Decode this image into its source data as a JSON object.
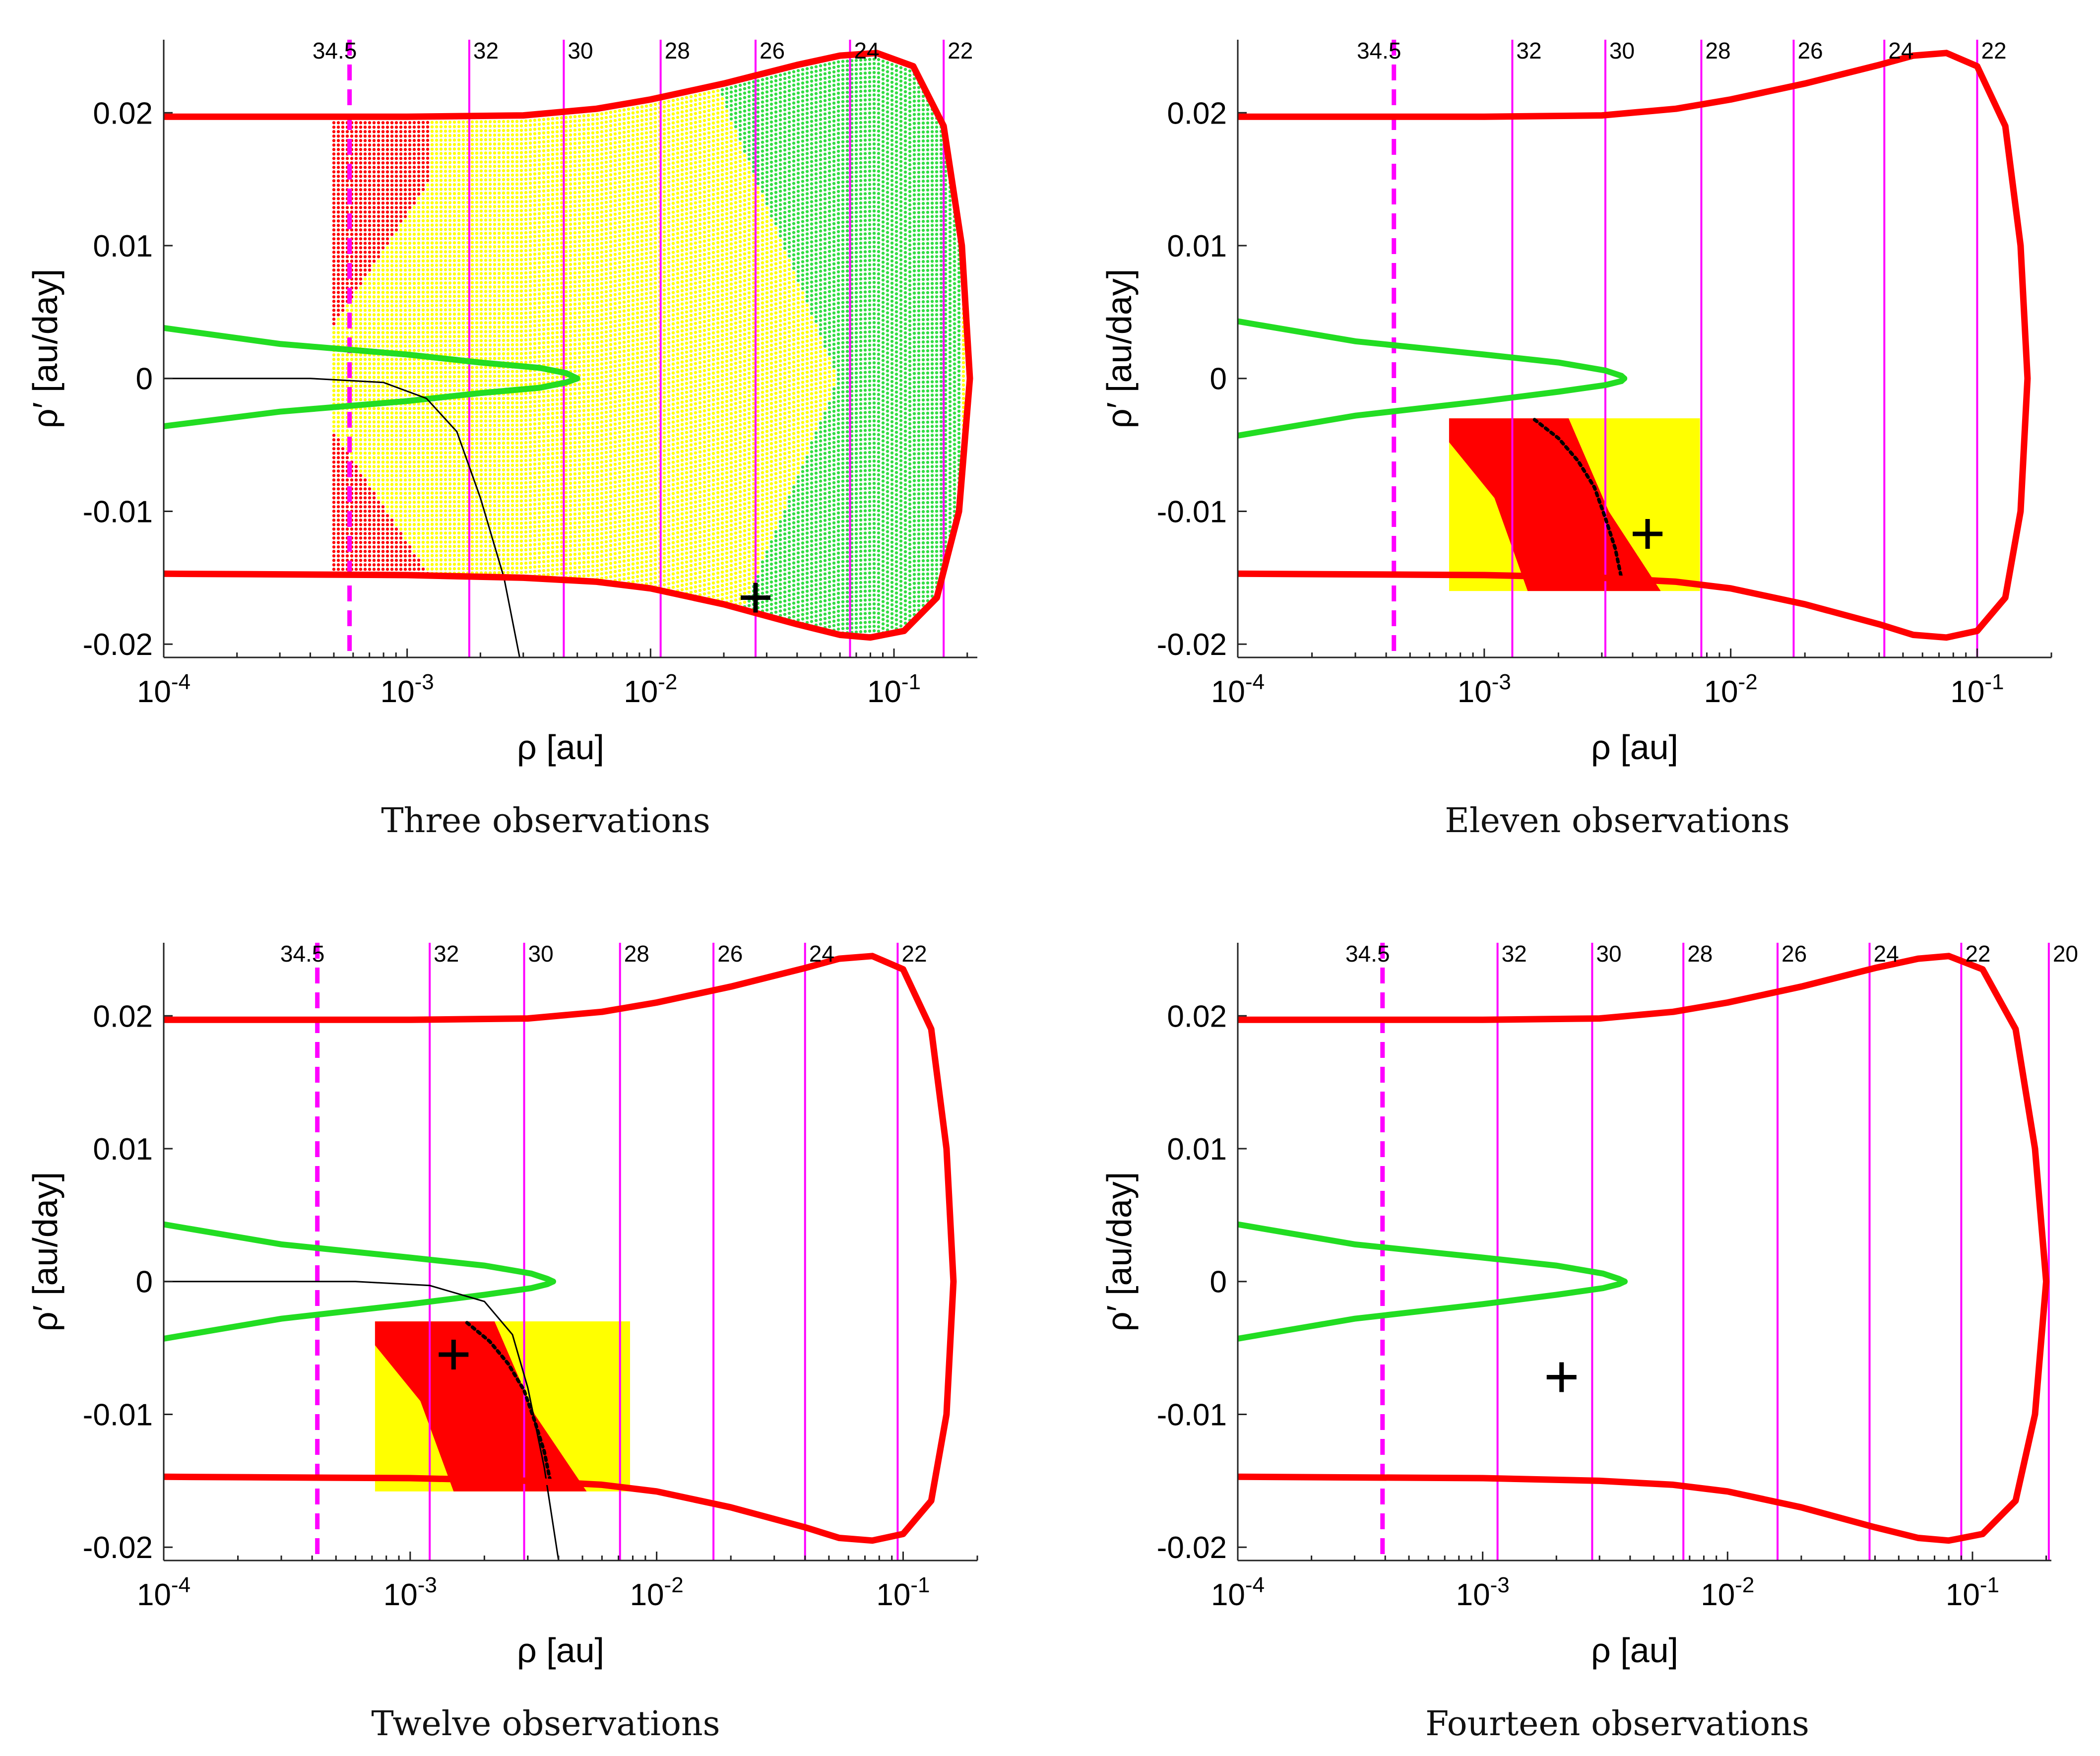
{
  "figure": {
    "x_label": "ρ [au]",
    "y_label": "ρ′ [au/day]",
    "x_ticks": [
      {
        "value": 0.0001,
        "base": "10",
        "exp": "-4"
      },
      {
        "value": 0.001,
        "base": "10",
        "exp": "-3"
      },
      {
        "value": 0.01,
        "base": "10",
        "exp": "-2"
      },
      {
        "value": 0.1,
        "base": "10",
        "exp": "-1"
      }
    ],
    "y_ticks": [
      {
        "value": 0.02,
        "label": "0.02"
      },
      {
        "value": 0.01,
        "label": "0.01"
      },
      {
        "value": 0,
        "label": "0"
      },
      {
        "value": -0.01,
        "label": "-0.01"
      },
      {
        "value": -0.02,
        "label": "-0.02"
      }
    ],
    "colors": {
      "boundary_red": "#ff0000",
      "green_curve": "#22dd22",
      "magenta": "#ff00ff",
      "yellow_region": "#ffff00",
      "red_region": "#ff0000",
      "green_region": "#33dd44",
      "black": "#000000"
    }
  },
  "chart_data": [
    {
      "type": "scatter",
      "title": "Three observations",
      "xlabel": "ρ [au]",
      "ylabel": "ρ′ [au/day]",
      "xscale": "log",
      "xlim": [
        0.0001,
        0.22
      ],
      "ylim": [
        -0.021,
        0.0255
      ],
      "boundary_upper": [
        [
          0.0001,
          0.0197
        ],
        [
          0.001,
          0.0197
        ],
        [
          0.003,
          0.0198
        ],
        [
          0.006,
          0.0203
        ],
        [
          0.01,
          0.021
        ],
        [
          0.02,
          0.0222
        ],
        [
          0.04,
          0.0236
        ],
        [
          0.06,
          0.0243
        ],
        [
          0.085,
          0.0245
        ],
        [
          0.12,
          0.0235
        ],
        [
          0.16,
          0.019
        ],
        [
          0.19,
          0.01
        ],
        [
          0.205,
          0
        ]
      ],
      "boundary_lower": [
        [
          0.0001,
          -0.0147
        ],
        [
          0.001,
          -0.0148
        ],
        [
          0.003,
          -0.015
        ],
        [
          0.006,
          -0.0153
        ],
        [
          0.01,
          -0.0158
        ],
        [
          0.02,
          -0.017
        ],
        [
          0.04,
          -0.0185
        ],
        [
          0.06,
          -0.0193
        ],
        [
          0.08,
          -0.0195
        ],
        [
          0.11,
          -0.019
        ],
        [
          0.15,
          -0.0165
        ],
        [
          0.185,
          -0.01
        ],
        [
          0.205,
          0
        ]
      ],
      "green_curve_upper": [
        [
          0.0001,
          0.0038
        ],
        [
          0.0003,
          0.0026
        ],
        [
          0.001,
          0.0018
        ],
        [
          0.002,
          0.0012
        ],
        [
          0.0035,
          0.0008
        ],
        [
          0.0045,
          0.0004
        ],
        [
          0.005,
          0
        ]
      ],
      "green_curve_lower": [
        [
          0.0001,
          -0.0036
        ],
        [
          0.0003,
          -0.0025
        ],
        [
          0.001,
          -0.0017
        ],
        [
          0.002,
          -0.0011
        ],
        [
          0.0035,
          -0.0007
        ],
        [
          0.0045,
          -0.0003
        ],
        [
          0.005,
          0
        ]
      ],
      "black_curve": [
        [
          0.0001,
          0
        ],
        [
          0.0004,
          0
        ],
        [
          0.0008,
          -0.0003
        ],
        [
          0.0012,
          -0.0015
        ],
        [
          0.0016,
          -0.004
        ],
        [
          0.002,
          -0.009
        ],
        [
          0.0025,
          -0.015
        ],
        [
          0.0029,
          -0.021
        ]
      ],
      "grid_box": {
        "x": [
          0.0005,
          0.2
        ],
        "y": [
          -0.015,
          0.0205
        ]
      },
      "marker": {
        "x": 0.027,
        "y": -0.0165
      },
      "vlines": [
        {
          "label": "34.5",
          "x": 0.00058,
          "dashed": true
        },
        {
          "label": "32",
          "x": 0.0018,
          "dashed": false
        },
        {
          "label": "30",
          "x": 0.0044,
          "dashed": false
        },
        {
          "label": "28",
          "x": 0.011,
          "dashed": false
        },
        {
          "label": "26",
          "x": 0.027,
          "dashed": false
        },
        {
          "label": "24",
          "x": 0.066,
          "dashed": false
        },
        {
          "label": "22",
          "x": 0.16,
          "dashed": false
        }
      ]
    },
    {
      "type": "scatter",
      "title": "Eleven observations",
      "xlabel": "ρ [au]",
      "ylabel": "ρ′ [au/day]",
      "xscale": "log",
      "xlim": [
        0.0001,
        0.2
      ],
      "ylim": [
        -0.021,
        0.0255
      ],
      "boundary_upper": [
        [
          0.0001,
          0.0197
        ],
        [
          0.001,
          0.0197
        ],
        [
          0.003,
          0.0198
        ],
        [
          0.006,
          0.0203
        ],
        [
          0.01,
          0.021
        ],
        [
          0.02,
          0.0222
        ],
        [
          0.04,
          0.0236
        ],
        [
          0.055,
          0.0243
        ],
        [
          0.075,
          0.0245
        ],
        [
          0.1,
          0.0235
        ],
        [
          0.13,
          0.019
        ],
        [
          0.15,
          0.01
        ],
        [
          0.16,
          0
        ]
      ],
      "boundary_lower": [
        [
          0.0001,
          -0.0147
        ],
        [
          0.001,
          -0.0148
        ],
        [
          0.003,
          -0.015
        ],
        [
          0.006,
          -0.0153
        ],
        [
          0.01,
          -0.0158
        ],
        [
          0.02,
          -0.017
        ],
        [
          0.04,
          -0.0185
        ],
        [
          0.055,
          -0.0193
        ],
        [
          0.075,
          -0.0195
        ],
        [
          0.1,
          -0.019
        ],
        [
          0.13,
          -0.0165
        ],
        [
          0.15,
          -0.01
        ],
        [
          0.16,
          0
        ]
      ],
      "green_curve_upper": [
        [
          0.0001,
          0.0043
        ],
        [
          0.0003,
          0.0028
        ],
        [
          0.001,
          0.0018
        ],
        [
          0.002,
          0.0012
        ],
        [
          0.0031,
          0.0006
        ],
        [
          0.0036,
          0.0002
        ],
        [
          0.0037,
          0
        ]
      ],
      "green_curve_lower": [
        [
          0.0001,
          -0.0043
        ],
        [
          0.0003,
          -0.0028
        ],
        [
          0.001,
          -0.0017
        ],
        [
          0.002,
          -0.001
        ],
        [
          0.0031,
          -0.0005
        ],
        [
          0.0036,
          -0.0002
        ],
        [
          0.0037,
          0
        ]
      ],
      "yellow_rect": {
        "x": [
          0.00072,
          0.0075
        ],
        "y": [
          -0.016,
          -0.003
        ]
      },
      "red_band": [
        [
          0.0012,
          -0.003
        ],
        [
          0.0022,
          -0.003
        ],
        [
          0.0032,
          -0.01
        ],
        [
          0.0052,
          -0.016
        ],
        [
          0.0015,
          -0.016
        ],
        [
          0.0011,
          -0.009
        ],
        [
          0.00072,
          -0.0048
        ],
        [
          0.00072,
          -0.003
        ]
      ],
      "dot_curve": [
        [
          0.0016,
          -0.0031
        ],
        [
          0.002,
          -0.0045
        ],
        [
          0.0024,
          -0.0062
        ],
        [
          0.0028,
          -0.0082
        ],
        [
          0.0031,
          -0.0105
        ],
        [
          0.0034,
          -0.0128
        ],
        [
          0.0036,
          -0.015
        ]
      ],
      "marker": {
        "x": 0.0046,
        "y": -0.0117
      },
      "vlines": [
        {
          "label": "34.5",
          "x": 0.00043,
          "dashed": true
        },
        {
          "label": "32",
          "x": 0.0013,
          "dashed": false
        },
        {
          "label": "30",
          "x": 0.0031,
          "dashed": false
        },
        {
          "label": "28",
          "x": 0.0076,
          "dashed": false
        },
        {
          "label": "26",
          "x": 0.018,
          "dashed": false
        },
        {
          "label": "24",
          "x": 0.042,
          "dashed": false
        },
        {
          "label": "22",
          "x": 0.1,
          "dashed": false
        }
      ]
    },
    {
      "type": "scatter",
      "title": "Twelve observations",
      "xlabel": "ρ [au]",
      "ylabel": "ρ′ [au/day]",
      "xscale": "log",
      "xlim": [
        0.0001,
        0.2
      ],
      "ylim": [
        -0.021,
        0.0255
      ],
      "boundary_upper": [
        [
          0.0001,
          0.0197
        ],
        [
          0.001,
          0.0197
        ],
        [
          0.003,
          0.0198
        ],
        [
          0.006,
          0.0203
        ],
        [
          0.01,
          0.021
        ],
        [
          0.02,
          0.0222
        ],
        [
          0.04,
          0.0236
        ],
        [
          0.055,
          0.0243
        ],
        [
          0.075,
          0.0245
        ],
        [
          0.1,
          0.0235
        ],
        [
          0.13,
          0.019
        ],
        [
          0.15,
          0.01
        ],
        [
          0.16,
          0
        ]
      ],
      "boundary_lower": [
        [
          0.0001,
          -0.0147
        ],
        [
          0.001,
          -0.0148
        ],
        [
          0.003,
          -0.015
        ],
        [
          0.006,
          -0.0153
        ],
        [
          0.01,
          -0.0158
        ],
        [
          0.02,
          -0.017
        ],
        [
          0.04,
          -0.0185
        ],
        [
          0.055,
          -0.0193
        ],
        [
          0.075,
          -0.0195
        ],
        [
          0.1,
          -0.019
        ],
        [
          0.13,
          -0.0165
        ],
        [
          0.15,
          -0.01
        ],
        [
          0.16,
          0
        ]
      ],
      "green_curve_upper": [
        [
          0.0001,
          0.0043
        ],
        [
          0.0003,
          0.0028
        ],
        [
          0.001,
          0.0018
        ],
        [
          0.002,
          0.0012
        ],
        [
          0.0031,
          0.0006
        ],
        [
          0.0036,
          0.0002
        ],
        [
          0.0038,
          0
        ]
      ],
      "green_curve_lower": [
        [
          0.0001,
          -0.0043
        ],
        [
          0.0003,
          -0.0028
        ],
        [
          0.001,
          -0.0017
        ],
        [
          0.002,
          -0.001
        ],
        [
          0.0031,
          -0.0005
        ],
        [
          0.0036,
          -0.0002
        ],
        [
          0.0038,
          0
        ]
      ],
      "black_curve": [
        [
          0.0001,
          0
        ],
        [
          0.0006,
          0
        ],
        [
          0.0012,
          -0.0003
        ],
        [
          0.002,
          -0.0015
        ],
        [
          0.0026,
          -0.004
        ],
        [
          0.003,
          -0.008
        ],
        [
          0.0035,
          -0.014
        ],
        [
          0.004,
          -0.021
        ]
      ],
      "yellow_rect": {
        "x": [
          0.00072,
          0.0078
        ],
        "y": [
          -0.0158,
          -0.003
        ]
      },
      "red_band": [
        [
          0.0012,
          -0.003
        ],
        [
          0.0022,
          -0.003
        ],
        [
          0.0032,
          -0.01
        ],
        [
          0.0052,
          -0.0158
        ],
        [
          0.0015,
          -0.0158
        ],
        [
          0.0011,
          -0.009
        ],
        [
          0.00072,
          -0.0048
        ],
        [
          0.00072,
          -0.003
        ]
      ],
      "dot_curve": [
        [
          0.0017,
          -0.0031
        ],
        [
          0.0021,
          -0.0045
        ],
        [
          0.0025,
          -0.0062
        ],
        [
          0.0029,
          -0.0082
        ],
        [
          0.0032,
          -0.0105
        ],
        [
          0.0035,
          -0.0128
        ],
        [
          0.0037,
          -0.015
        ]
      ],
      "marker": {
        "x": 0.0015,
        "y": -0.0055
      },
      "vlines": [
        {
          "label": "34.5",
          "x": 0.00042,
          "dashed": true
        },
        {
          "label": "32",
          "x": 0.0012,
          "dashed": false
        },
        {
          "label": "30",
          "x": 0.0029,
          "dashed": false
        },
        {
          "label": "28",
          "x": 0.0071,
          "dashed": false
        },
        {
          "label": "26",
          "x": 0.017,
          "dashed": false
        },
        {
          "label": "24",
          "x": 0.04,
          "dashed": false
        },
        {
          "label": "22",
          "x": 0.095,
          "dashed": false
        }
      ]
    },
    {
      "type": "scatter",
      "title": "Fourteen observations",
      "xlabel": "ρ [au]",
      "ylabel": "ρ′ [au/day]",
      "xscale": "log",
      "xlim": [
        0.0001,
        0.21
      ],
      "ylim": [
        -0.021,
        0.0255
      ],
      "boundary_upper": [
        [
          0.0001,
          0.0197
        ],
        [
          0.001,
          0.0197
        ],
        [
          0.003,
          0.0198
        ],
        [
          0.006,
          0.0203
        ],
        [
          0.01,
          0.021
        ],
        [
          0.02,
          0.0222
        ],
        [
          0.04,
          0.0236
        ],
        [
          0.06,
          0.0243
        ],
        [
          0.08,
          0.0245
        ],
        [
          0.11,
          0.0235
        ],
        [
          0.15,
          0.019
        ],
        [
          0.18,
          0.01
        ],
        [
          0.2,
          0
        ]
      ],
      "boundary_lower": [
        [
          0.0001,
          -0.0147
        ],
        [
          0.001,
          -0.0148
        ],
        [
          0.003,
          -0.015
        ],
        [
          0.006,
          -0.0153
        ],
        [
          0.01,
          -0.0158
        ],
        [
          0.02,
          -0.017
        ],
        [
          0.04,
          -0.0185
        ],
        [
          0.06,
          -0.0193
        ],
        [
          0.08,
          -0.0195
        ],
        [
          0.11,
          -0.019
        ],
        [
          0.15,
          -0.0165
        ],
        [
          0.18,
          -0.01
        ],
        [
          0.2,
          0
        ]
      ],
      "green_curve_upper": [
        [
          0.0001,
          0.0043
        ],
        [
          0.0003,
          0.0028
        ],
        [
          0.001,
          0.0018
        ],
        [
          0.002,
          0.0012
        ],
        [
          0.0031,
          0.0006
        ],
        [
          0.0036,
          0.0002
        ],
        [
          0.0038,
          0
        ]
      ],
      "green_curve_lower": [
        [
          0.0001,
          -0.0043
        ],
        [
          0.0003,
          -0.0028
        ],
        [
          0.001,
          -0.0017
        ],
        [
          0.002,
          -0.001
        ],
        [
          0.0031,
          -0.0005
        ],
        [
          0.0036,
          -0.0002
        ],
        [
          0.0038,
          0
        ]
      ],
      "marker": {
        "x": 0.0021,
        "y": -0.0072
      },
      "vlines": [
        {
          "label": "34.5",
          "x": 0.00039,
          "dashed": true
        },
        {
          "label": "32",
          "x": 0.00115,
          "dashed": false
        },
        {
          "label": "30",
          "x": 0.0028,
          "dashed": false
        },
        {
          "label": "28",
          "x": 0.0066,
          "dashed": false
        },
        {
          "label": "26",
          "x": 0.016,
          "dashed": false
        },
        {
          "label": "24",
          "x": 0.038,
          "dashed": false
        },
        {
          "label": "22",
          "x": 0.09,
          "dashed": false
        },
        {
          "label": "20",
          "x": 0.205,
          "dashed": false
        }
      ]
    }
  ]
}
